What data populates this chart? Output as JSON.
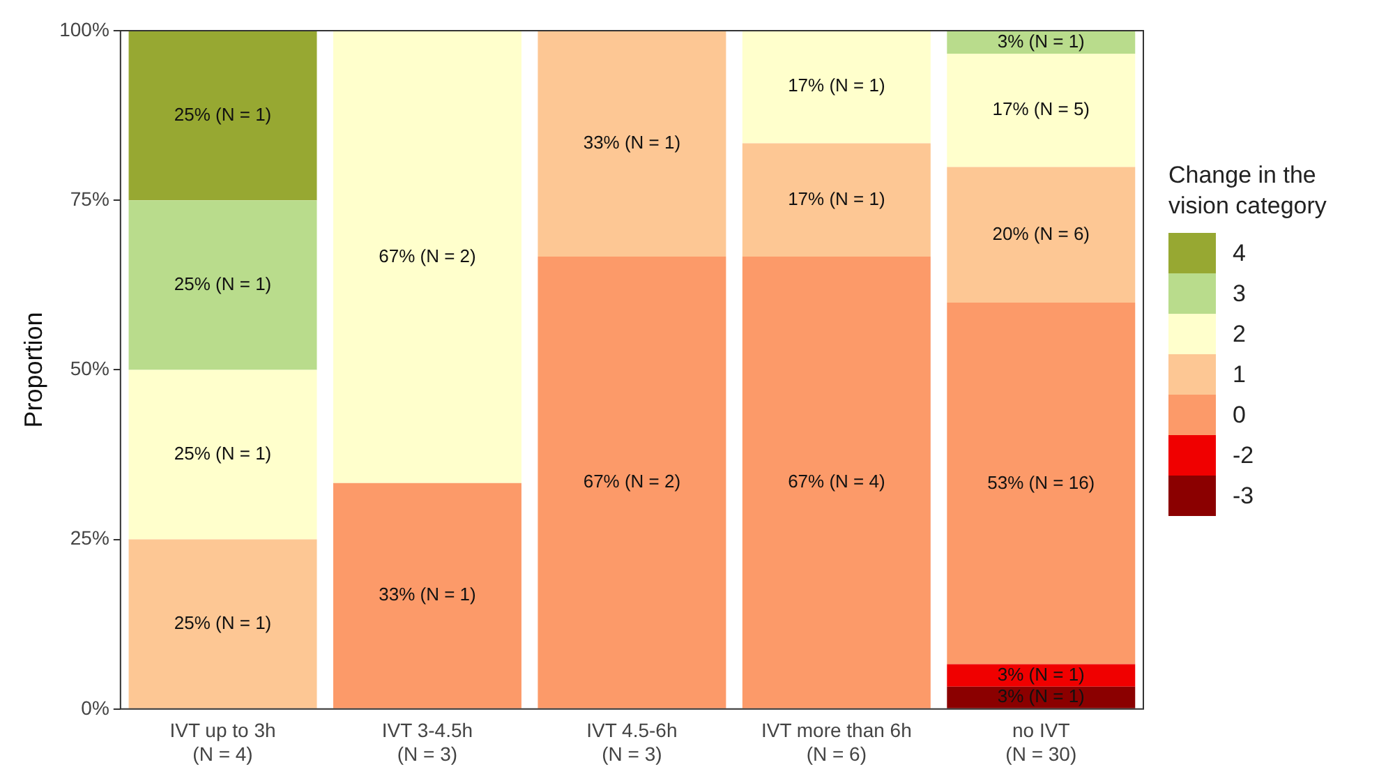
{
  "chart_data": {
    "type": "bar",
    "stacked": true,
    "ylabel": "Proportion",
    "legend_title": "Change in the vision category",
    "legend": "right",
    "grid": false,
    "categories": [
      "IVT up to 3h\n(N = 4)",
      "IVT 3-4.5h\n(N = 3)",
      "IVT 4.5-6h\n(N = 3)",
      "IVT more than 6h\n(N = 6)",
      "no IVT\n(N = 30)"
    ],
    "ylim": [
      0,
      100
    ],
    "yticks": [
      {
        "value": 0,
        "label": "0%"
      },
      {
        "value": 25,
        "label": "25%"
      },
      {
        "value": 50,
        "label": "50%"
      },
      {
        "value": 75,
        "label": "75%"
      },
      {
        "value": 100,
        "label": "100%"
      }
    ],
    "series": [
      {
        "name": "-3",
        "color": "#8b0000",
        "values": [
          0,
          0,
          0,
          0,
          3.3
        ],
        "value_labels": [
          null,
          null,
          null,
          null,
          "3% (N = 1)"
        ]
      },
      {
        "name": "-2",
        "color": "#f00000",
        "values": [
          0,
          0,
          0,
          0,
          3.3
        ],
        "value_labels": [
          null,
          null,
          null,
          null,
          "3% (N = 1)"
        ]
      },
      {
        "name": "0",
        "color": "#fc9a69",
        "values": [
          0,
          33.3,
          66.7,
          66.7,
          53.3
        ],
        "value_labels": [
          null,
          "33% (N = 1)",
          "67% (N = 2)",
          "67% (N = 4)",
          "53% (N = 16)"
        ]
      },
      {
        "name": "1",
        "color": "#fdc794",
        "values": [
          25,
          0,
          33.3,
          16.7,
          20
        ],
        "value_labels": [
          "25% (N = 1)",
          null,
          "33% (N = 1)",
          "17% (N = 1)",
          "20% (N = 6)"
        ]
      },
      {
        "name": "2",
        "color": "#ffffcc",
        "values": [
          25,
          66.7,
          0,
          16.7,
          16.7
        ],
        "value_labels": [
          "25% (N = 1)",
          "67% (N = 2)",
          null,
          "17% (N = 1)",
          "17% (N = 5)"
        ]
      },
      {
        "name": "3",
        "color": "#b9dc8c",
        "values": [
          25,
          0,
          0,
          0,
          3.3
        ],
        "value_labels": [
          "25% (N = 1)",
          null,
          null,
          null,
          "3% (N = 1)"
        ]
      },
      {
        "name": "4",
        "color": "#97a832",
        "values": [
          25,
          0,
          0,
          0,
          0
        ],
        "value_labels": [
          "25% (N = 1)",
          null,
          null,
          null,
          null
        ]
      }
    ]
  }
}
